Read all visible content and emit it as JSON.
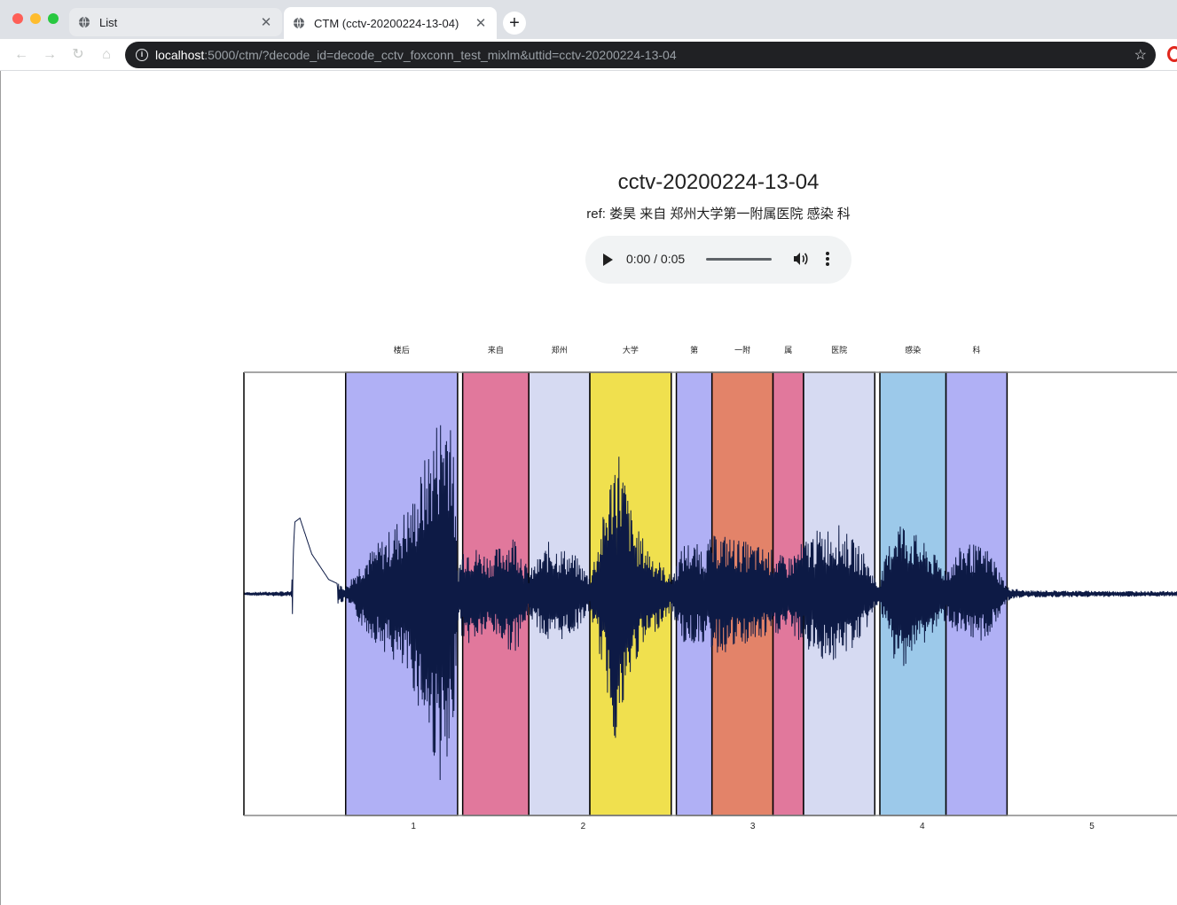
{
  "browser": {
    "tabs": [
      {
        "title": "List",
        "active": false
      },
      {
        "title": "CTM (cctv-20200224-13-04)",
        "active": true
      }
    ],
    "url_host": "localhost",
    "url_rest": ":5000/ctm/?decode_id=decode_cctv_foxconn_test_mixlm&uttid=cctv-20200224-13-04"
  },
  "page": {
    "title": "cctv-20200224-13-04",
    "ref": "ref: 娄昊 来自 郑州大学第一附属医院 感染 科"
  },
  "audio": {
    "time": "0:00 / 0:05"
  },
  "chart_data": {
    "type": "waveform",
    "x_ticks": [
      1,
      2,
      3,
      4,
      5
    ],
    "xlim": [
      0,
      5.55
    ],
    "segments": [
      {
        "label": "楼后",
        "start": 0.6,
        "end": 1.26,
        "color": "#b0b0f5"
      },
      {
        "label": "来自",
        "start": 1.29,
        "end": 1.68,
        "color": "#e1789c"
      },
      {
        "label": "郑州",
        "start": 1.68,
        "end": 2.04,
        "color": "#d6daf2"
      },
      {
        "label": "大学",
        "start": 2.04,
        "end": 2.52,
        "color": "#f0e04e"
      },
      {
        "label": "第",
        "start": 2.55,
        "end": 2.76,
        "color": "#b0b0f5"
      },
      {
        "label": "一附",
        "start": 2.76,
        "end": 3.12,
        "color": "#e38369"
      },
      {
        "label": "属",
        "start": 3.12,
        "end": 3.3,
        "color": "#e1789c"
      },
      {
        "label": "医院",
        "start": 3.3,
        "end": 3.72,
        "color": "#d6daf2"
      },
      {
        "label": "感染",
        "start": 3.75,
        "end": 4.14,
        "color": "#9cc9ea"
      },
      {
        "label": "科",
        "start": 4.14,
        "end": 4.5,
        "color": "#b0b0f5"
      }
    ],
    "wave_color": "#0d1a45"
  }
}
